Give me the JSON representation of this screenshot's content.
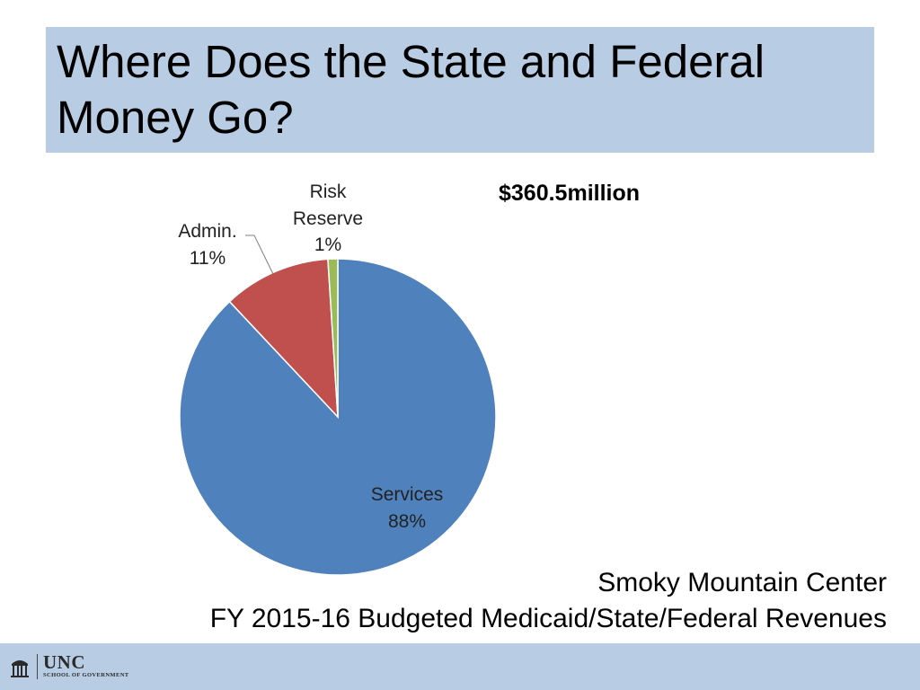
{
  "slide": {
    "title": "Where Does the State and Federal Money Go?",
    "total_label": "$360.5million",
    "caption_line1": "Smoky Mountain Center",
    "caption_line2": "FY 2015-16 Budgeted Medicaid/State/Federal Revenues"
  },
  "footer": {
    "logo_main": "UNC",
    "logo_sub": "SCHOOL OF GOVERNMENT"
  },
  "chart_data": {
    "type": "pie",
    "title": "",
    "slices": [
      {
        "name": "Services",
        "value": 88,
        "label": "88%",
        "color": "#4f81bd"
      },
      {
        "name": "Admin.",
        "value": 11,
        "label": "11%",
        "color": "#c0504d"
      },
      {
        "name": "Risk Reserve",
        "value": 1,
        "label": "1%",
        "color": "#9bbb59"
      }
    ],
    "start": "12 o'clock",
    "direction": "clockwise",
    "legend": "none"
  }
}
